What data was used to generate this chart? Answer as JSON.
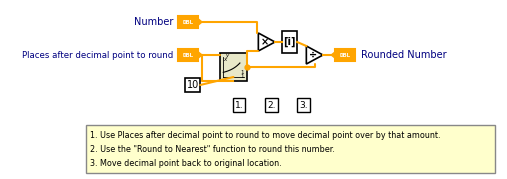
{
  "bg_color": "#ffffff",
  "orange": "#FF8C00",
  "dark_orange": "#E07000",
  "box_orange": "#FFA500",
  "arrow_color": "#FFA500",
  "block_fill": "#F5F5DC",
  "text_color": "#000080",
  "note_bg": "#FFFFCC",
  "note_border": "#888888",
  "label_number": "Number",
  "label_places": "Places after decimal point to round",
  "label_rounded": "Rounded Number",
  "label_10": "10",
  "note_line1": "1. Use Places after decimal point to round to move decimal point over by that amount.",
  "note_line2": "2. Use the \"Round to Nearest\" function to round this number.",
  "note_line3": "3. Move decimal point back to original location.",
  "numbered_labels": [
    "1.",
    "2.",
    "3."
  ],
  "dbl_color": "#FFA500",
  "dbl_text": "DBL"
}
